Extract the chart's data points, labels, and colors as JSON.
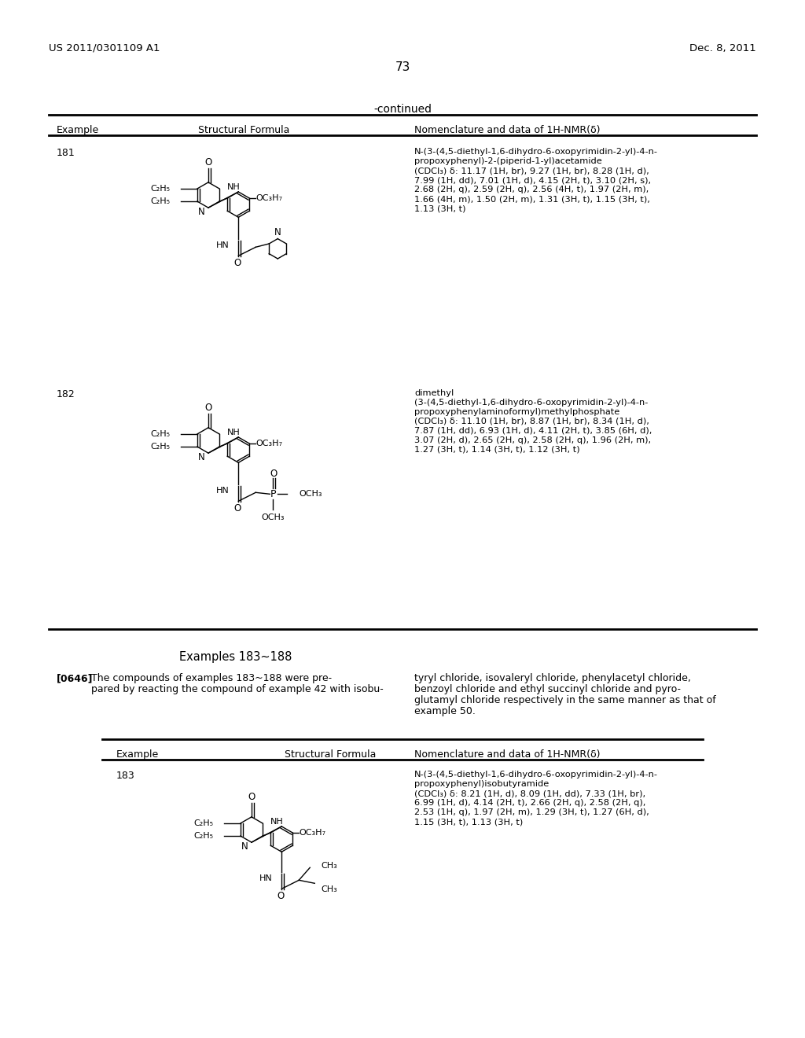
{
  "page_number": "73",
  "patent_left": "US 2011/0301109 A1",
  "patent_right": "Dec. 8, 2011",
  "continued_label": "-continued",
  "table_header_col1": "Example",
  "table_header_col2": "Structural Formula",
  "table_header_col3": "Nomenclature and data of 1H-NMR(δ)",
  "example_181": "181",
  "nmr_181_line1": "N-(3-(4,5-diethyl-1,6-dihydro-6-oxopyrimidin-2-yl)-4-n-",
  "nmr_181_line2": "propoxyphenyl)-2-(piperid-1-yl)acetamide",
  "nmr_181_line3": "(CDCl₃) δ: 11.17 (1H, br), 9.27 (1H, br), 8.28 (1H, d),",
  "nmr_181_line4": "7.99 (1H, dd), 7.01 (1H, d), 4.15 (2H, t), 3.10 (2H, s),",
  "nmr_181_line5": "2.68 (2H, q), 2.59 (2H, q), 2.56 (4H, t), 1.97 (2H, m),",
  "nmr_181_line6": "1.66 (4H, m), 1.50 (2H, m), 1.31 (3H, t), 1.15 (3H, t),",
  "nmr_181_line7": "1.13 (3H, t)",
  "example_182": "182",
  "nmr_182_title": "dimethyl",
  "nmr_182_line1": "(3-(4,5-diethyl-1,6-dihydro-6-oxopyrimidin-2-yl)-4-n-",
  "nmr_182_line2": "propoxyphenylaminoformyl)methylphosphate",
  "nmr_182_line3": "(CDCl₃) δ: 11.10 (1H, br), 8.87 (1H, br), 8.34 (1H, d),",
  "nmr_182_line4": "7.87 (1H, dd), 6.93 (1H, d), 4.11 (2H, t), 3.85 (6H, d),",
  "nmr_182_line5": "3.07 (2H, d), 2.65 (2H, q), 2.58 (2H, q), 1.96 (2H, m),",
  "nmr_182_line6": "1.27 (3H, t), 1.14 (3H, t), 1.12 (3H, t)",
  "examples_183_188_title": "Examples 183~188",
  "para_0646_label": "[0646]",
  "para_0646_left1": "The compounds of examples 183~188 were pre-",
  "para_0646_left2": "pared by reacting the compound of example 42 with isobu-",
  "para_0646_right1": "tyryl chloride, isovaleryl chloride, phenylacetyl chloride,",
  "para_0646_right2": "benzoyl chloride and ethyl succinyl chloride and pyro-",
  "para_0646_right3": "glutamyl chloride respectively in the same manner as that of",
  "para_0646_right4": "example 50.",
  "example_183": "183",
  "nmr_183_line1": "N-(3-(4,5-diethyl-1,6-dihydro-6-oxopyrimidin-2-yl)-4-n-",
  "nmr_183_line2": "propoxyphenyl)isobutyramide",
  "nmr_183_line3": "(CDCl₃) δ: 8.21 (1H, d), 8.09 (1H, dd), 7.33 (1H, br),",
  "nmr_183_line4": "6.99 (1H, d), 4.14 (2H, t), 2.66 (2H, q), 2.58 (2H, q),",
  "nmr_183_line5": "2.53 (1H, q), 1.97 (2H, m), 1.29 (3H, t), 1.27 (6H, d),",
  "nmr_183_line6": "1.15 (3H, t), 1.13 (3H, t)",
  "background_color": "#ffffff"
}
